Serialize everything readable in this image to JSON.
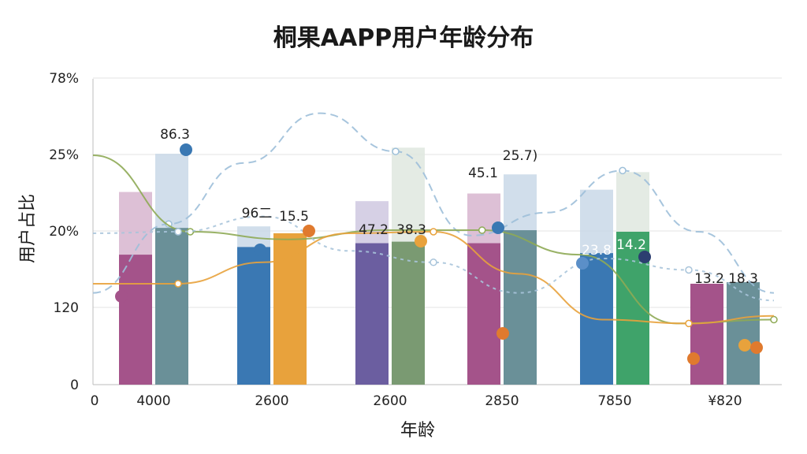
{
  "chart_data": {
    "type": "bar",
    "title": "桐果AAPP用户年龄分布",
    "xlabel": "年龄",
    "ylabel": "用户占比",
    "origin_label": "0",
    "categories": [
      "4000",
      "2600",
      "2600",
      "2850",
      "7850",
      "¥820"
    ],
    "y_tick_labels": [
      "0",
      "120",
      "20%",
      "25%",
      "78%"
    ],
    "grid": true,
    "series": [
      {
        "color": "#a4538a",
        "values": [
          17,
          null,
          null,
          18.5,
          null,
          13.2
        ]
      },
      {
        "color": "#3a78b3",
        "values": [
          null,
          18,
          null,
          null,
          17.2,
          null
        ]
      },
      {
        "color": "#6b5ea0",
        "values": [
          null,
          null,
          18.5,
          null,
          null,
          null
        ]
      },
      {
        "color": "#6a9098",
        "values": [
          20.5,
          null,
          null,
          20.2,
          null,
          13.4
        ]
      },
      {
        "color": "#e8a23c",
        "values": [
          null,
          19.8,
          null,
          null,
          null,
          null
        ]
      },
      {
        "color": "#7a9a72",
        "values": [
          null,
          null,
          18.7,
          null,
          null,
          null
        ]
      },
      {
        "color": "#3fa36a",
        "values": [
          null,
          null,
          null,
          null,
          20.0,
          null
        ]
      }
    ],
    "bar_caps": [
      {
        "color": "#d7b5cf",
        "values": [
          25.2,
          null,
          null,
          25.0,
          null,
          null
        ]
      },
      {
        "color": "#c9d8e8",
        "values": [
          30.2,
          20.7,
          null,
          27.5,
          25.5,
          null
        ]
      },
      {
        "color": "#cfc8e0",
        "values": [
          null,
          null,
          24.0,
          null,
          null,
          null
        ]
      },
      {
        "color": "#dfe7df",
        "values": [
          null,
          null,
          31.0,
          null,
          27.8,
          null
        ]
      }
    ],
    "lines": [
      {
        "color": "#9dbfd9",
        "points": [
          12.0,
          21.0,
          29.0,
          35.5,
          30.5,
          19.5,
          22.5,
          28.0,
          20.0,
          12.0
        ]
      },
      {
        "color": "#8eaa55",
        "points": [
          30.0,
          20.0,
          19.0,
          20.2,
          20.2,
          17.0,
          8.0,
          8.5
        ]
      },
      {
        "color": "#e8a23c",
        "points": [
          13.2,
          13.2,
          16.0,
          19.8,
          20.0,
          14.5,
          8.5,
          8.0,
          9.0
        ]
      },
      {
        "color": "#a8c4da",
        "points": [
          19.8,
          20.0,
          22.0,
          17.5,
          16.0,
          12.0,
          16.5,
          15.0,
          11.0
        ]
      }
    ],
    "data_labels": [
      "86.3",
      "96二",
      "15.5",
      "47.2",
      "38.3",
      "45.1",
      "25.7)",
      "23.8",
      "14.2",
      "13.2",
      "18.3"
    ]
  }
}
